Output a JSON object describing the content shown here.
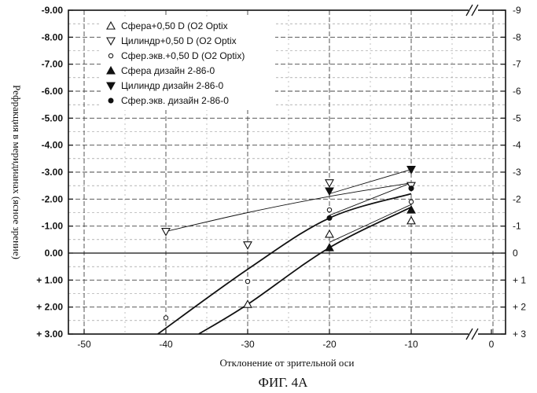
{
  "chart_data": {
    "type": "scatter",
    "figure_caption": "ФИГ. 4А",
    "xlabel": "Отклонение от зрительной оси",
    "ylabel": "Рефракция в меридианах (ясное зрение)",
    "xlim": [
      -53,
      3
    ],
    "ylim": [
      -9,
      3
    ],
    "y_inverted": true,
    "x_axis_break": true,
    "grid": "dashed",
    "legend_position": "top-left",
    "x_tick_labels": [
      "-50",
      "-40",
      "-30",
      "-20",
      "-10",
      "0"
    ],
    "left_tick_labels": [
      "-9.00",
      "-8.00",
      "-7.00",
      "-6.00",
      "-5.00",
      "-4.00",
      "-3.00",
      "-2.00",
      "-1.00",
      "0.00",
      "+ 1.00",
      "+ 2.00",
      "+ 3.00"
    ],
    "right_tick_labels": [
      "-9",
      "-8",
      "-7",
      "-6",
      "-5",
      "-4",
      "-3",
      "-2",
      "-1",
      "0",
      "+ 1",
      "+ 2",
      "+ 3"
    ],
    "series": [
      {
        "name": "Сфера+0,50 D (O2 Optix",
        "marker": "triangle-up-open",
        "x": [
          -30,
          -20,
          -10
        ],
        "y": [
          1.9,
          -0.7,
          -1.2
        ]
      },
      {
        "name": "Цилиндр+0,50 D (O2 Optix",
        "marker": "triangle-down-open",
        "x": [
          -40,
          -30,
          -20,
          -10
        ],
        "y": [
          -0.8,
          -0.3,
          -2.6,
          -2.5
        ]
      },
      {
        "name": "Сфер.экв.+0,50 D (O2 Optix)",
        "marker": "circle-open",
        "x": [
          -40,
          -30,
          -20,
          -10
        ],
        "y": [
          2.4,
          1.05,
          -1.6,
          -1.9
        ]
      },
      {
        "name": "Сфера дизайн 2-86-0",
        "marker": "triangle-up-filled",
        "x": [
          -20,
          -10
        ],
        "y": [
          -0.2,
          -1.6
        ]
      },
      {
        "name": "Цилиндр дизайн 2-86-0",
        "marker": "triangle-down-filled",
        "x": [
          -20,
          -10
        ],
        "y": [
          -2.3,
          -3.1
        ]
      },
      {
        "name": "Сфер.экв. дизайн 2-86-0",
        "marker": "circle-filled",
        "x": [
          -20,
          -10
        ],
        "y": [
          -1.3,
          -2.4
        ]
      }
    ],
    "trend_lines": [
      {
        "style": "thin",
        "x": [
          -40,
          -30,
          -20,
          -10
        ],
        "y": [
          -0.8,
          -1.5,
          -2.1,
          -2.6
        ]
      },
      {
        "style": "thick",
        "x": [
          -41,
          -30,
          -20,
          -10
        ],
        "y": [
          3.0,
          0.6,
          -1.3,
          -2.2
        ]
      },
      {
        "style": "thick",
        "x": [
          -36,
          -30,
          -20,
          -10
        ],
        "y": [
          3.0,
          1.9,
          -0.2,
          -1.7
        ]
      },
      {
        "style": "thin",
        "x": [
          -20,
          -10
        ],
        "y": [
          -2.2,
          -3.1
        ]
      },
      {
        "style": "thin",
        "x": [
          -20,
          -10
        ],
        "y": [
          -1.4,
          -2.6
        ]
      },
      {
        "style": "thin",
        "x": [
          -20,
          -10
        ],
        "y": [
          -0.4,
          -1.8
        ]
      }
    ]
  }
}
